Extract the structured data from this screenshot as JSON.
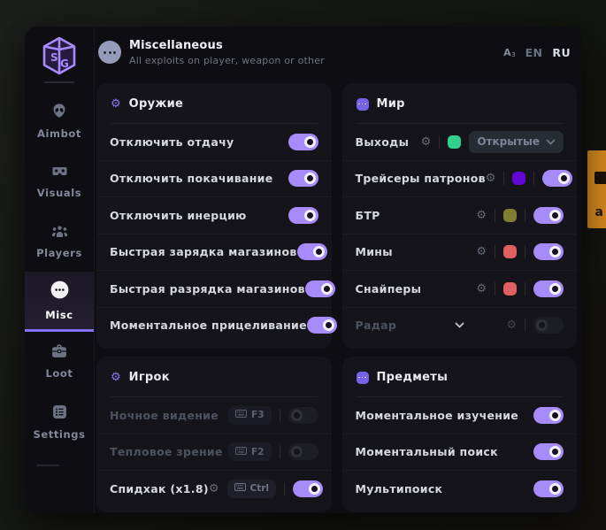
{
  "header": {
    "title": "Miscellaneous",
    "subtitle": "All exploits on player, weapon or other",
    "lang_options": [
      "EN",
      "RU"
    ],
    "lang_active": "RU",
    "lang_icon": "Aз"
  },
  "sidebar": {
    "items": [
      {
        "id": "aimbot",
        "label": "Aimbot"
      },
      {
        "id": "visuals",
        "label": "Visuals"
      },
      {
        "id": "players",
        "label": "Players"
      },
      {
        "id": "misc",
        "label": "Misc",
        "active": true
      },
      {
        "id": "loot",
        "label": "Loot"
      },
      {
        "id": "settings",
        "label": "Settings"
      }
    ]
  },
  "columns": {
    "left": [
      {
        "id": "weapon",
        "title": "Оружие",
        "icon": "gear",
        "rows": [
          {
            "label": "Отключить отдачу",
            "controls": [
              {
                "type": "toggle",
                "on": true
              }
            ]
          },
          {
            "label": "Отключить покачивание",
            "controls": [
              {
                "type": "toggle",
                "on": true
              }
            ]
          },
          {
            "label": "Отключить инерцию",
            "controls": [
              {
                "type": "toggle",
                "on": true
              }
            ]
          },
          {
            "label": "Быстрая зарядка магазинов",
            "controls": [
              {
                "type": "toggle",
                "on": true
              }
            ]
          },
          {
            "label": "Быстрая разрядка магазинов",
            "controls": [
              {
                "type": "toggle",
                "on": true
              }
            ]
          },
          {
            "label": "Моментальное прицеливание",
            "controls": [
              {
                "type": "toggle",
                "on": true
              }
            ]
          }
        ]
      },
      {
        "id": "player",
        "title": "Игрок",
        "icon": "gear",
        "rows": [
          {
            "label": "Ночное видение",
            "disabled": true,
            "controls": [
              {
                "type": "key",
                "key": "F3"
              },
              {
                "type": "sep"
              },
              {
                "type": "toggle",
                "on": false
              }
            ]
          },
          {
            "label": "Тепловое зрение",
            "disabled": true,
            "controls": [
              {
                "type": "key",
                "key": "F2"
              },
              {
                "type": "sep"
              },
              {
                "type": "toggle",
                "on": false
              }
            ]
          },
          {
            "label": "Спидхак (x1.8)",
            "controls": [
              {
                "type": "gear"
              },
              {
                "type": "key",
                "key": "Ctrl"
              },
              {
                "type": "sep"
              },
              {
                "type": "toggle",
                "on": true
              }
            ]
          }
        ]
      }
    ],
    "right": [
      {
        "id": "world",
        "title": "Мир",
        "icon": "bubble",
        "rows": [
          {
            "label": "Выходы",
            "controls": [
              {
                "type": "gear"
              },
              {
                "type": "sep"
              },
              {
                "type": "swatch",
                "color": "#2fd08c"
              },
              {
                "type": "dropdown",
                "value": "Открытые"
              }
            ]
          },
          {
            "label": "Трейсеры патронов",
            "controls": [
              {
                "type": "gear"
              },
              {
                "type": "sep"
              },
              {
                "type": "swatch",
                "color": "#6207d6"
              },
              {
                "type": "sep"
              },
              {
                "type": "toggle",
                "on": true
              }
            ]
          },
          {
            "label": "БТР",
            "controls": [
              {
                "type": "gear"
              },
              {
                "type": "sep"
              },
              {
                "type": "swatch",
                "color": "#7d8030"
              },
              {
                "type": "sep"
              },
              {
                "type": "toggle",
                "on": true
              }
            ]
          },
          {
            "label": "Мины",
            "controls": [
              {
                "type": "gear"
              },
              {
                "type": "sep"
              },
              {
                "type": "swatch",
                "color": "#e05f5f"
              },
              {
                "type": "sep"
              },
              {
                "type": "toggle",
                "on": true
              }
            ]
          },
          {
            "label": "Снайперы",
            "controls": [
              {
                "type": "gear"
              },
              {
                "type": "sep"
              },
              {
                "type": "swatch",
                "color": "#e05f5f"
              },
              {
                "type": "sep"
              },
              {
                "type": "toggle",
                "on": true
              }
            ]
          },
          {
            "label": "Радар",
            "disabled": true,
            "chevron": true,
            "controls": [
              {
                "type": "gear"
              },
              {
                "type": "sep"
              },
              {
                "type": "toggle",
                "on": false
              }
            ]
          }
        ]
      },
      {
        "id": "items",
        "title": "Предметы",
        "icon": "bubble",
        "rows": [
          {
            "label": "Моментальное изучение",
            "controls": [
              {
                "type": "toggle",
                "on": true
              }
            ]
          },
          {
            "label": "Моментальный поиск",
            "controls": [
              {
                "type": "toggle",
                "on": true
              }
            ]
          },
          {
            "label": "Мультипоиск",
            "controls": [
              {
                "type": "toggle",
                "on": true
              }
            ]
          }
        ]
      }
    ]
  },
  "icons": {
    "gear": "⚙"
  },
  "colors": {
    "accent": "#a78bfa",
    "active_tab_underline": "#8472f2",
    "toggle_on": "#a78bfa",
    "window_bg": "#0d0d12",
    "card_bg": "#14141a",
    "background_sign": "#d5891e"
  }
}
